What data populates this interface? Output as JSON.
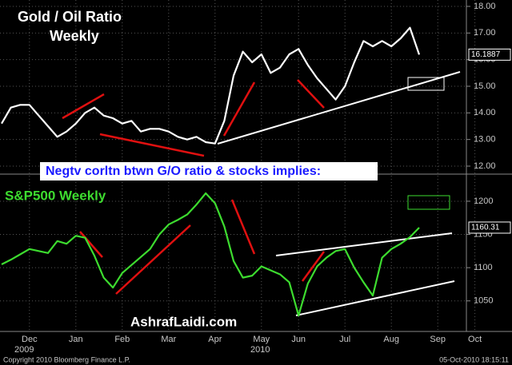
{
  "chart_data": [
    {
      "type": "line",
      "title": "Gold / Oil Ratio",
      "subtitle": "Weekly",
      "color": "#ffffff",
      "values": [
        13.6,
        14.2,
        14.3,
        14.3,
        13.9,
        13.5,
        13.1,
        13.3,
        13.6,
        14.0,
        14.2,
        13.9,
        13.8,
        13.6,
        13.7,
        13.3,
        13.4,
        13.4,
        13.3,
        13.1,
        13.0,
        13.1,
        12.9,
        12.85,
        13.7,
        15.4,
        16.3,
        15.9,
        16.2,
        15.5,
        15.7,
        16.2,
        16.4,
        15.8,
        15.3,
        14.9,
        14.5,
        15.0,
        15.9,
        16.7,
        16.5,
        16.7,
        16.5,
        16.8,
        17.2,
        16.1887,
        null,
        null,
        null,
        null,
        null,
        null
      ],
      "ylim": [
        11.79,
        18.24
      ],
      "yticks": [
        {
          "value": 12,
          "label": "12.00"
        },
        {
          "value": 13,
          "label": "13.00"
        },
        {
          "value": 14,
          "label": "14.00"
        },
        {
          "value": 15,
          "label": "15.00"
        },
        {
          "value": 16,
          "label": "16.00"
        },
        {
          "value": 17,
          "label": "17.00"
        },
        {
          "value": 18,
          "label": "18.00"
        }
      ],
      "grid": true
    },
    {
      "type": "line",
      "title": "S&P500 Weekly",
      "color": "#3ddc2f",
      "categories": [
        null,
        null,
        null,
        "Dec",
        null,
        null,
        null,
        null,
        "Jan",
        null,
        null,
        null,
        null,
        "Feb",
        null,
        null,
        null,
        null,
        "Mar",
        null,
        null,
        null,
        null,
        "Apr",
        null,
        null,
        null,
        null,
        "May",
        null,
        null,
        null,
        "Jun",
        null,
        null,
        null,
        null,
        "Jul",
        null,
        null,
        null,
        null,
        "Aug",
        null,
        null,
        null,
        null,
        "Sep",
        null,
        null,
        null,
        "Oct"
      ],
      "values": [
        1105,
        1112,
        1120,
        1128,
        1125,
        1122,
        1140,
        1136,
        1148,
        1145,
        1118,
        1085,
        1070,
        1092,
        1104,
        1116,
        1128,
        1150,
        1165,
        1172,
        1180,
        1195,
        1212,
        1197,
        1162,
        1110,
        1085,
        1088,
        1102,
        1096,
        1090,
        1078,
        1028,
        1076,
        1102,
        1115,
        1125,
        1128,
        1100,
        1078,
        1058,
        1115,
        1128,
        1136,
        1146,
        1160.31,
        null,
        null,
        null,
        null,
        null,
        null
      ],
      "ylim": [
        1004,
        1236
      ],
      "yticks": [
        1050,
        1100,
        1150,
        1200
      ],
      "grid": true
    }
  ],
  "annotations": {
    "banner": "Negtv corltn btwn G/O ratio & stocks implies:",
    "watermark": "AshrafLaidi.com",
    "years": [
      "2009",
      "2010"
    ]
  },
  "footer": {
    "copyright": "Copyright 2010 Bloomberg Finance L.P.",
    "timestamp": "05-Oct-2010 18:15:11"
  }
}
